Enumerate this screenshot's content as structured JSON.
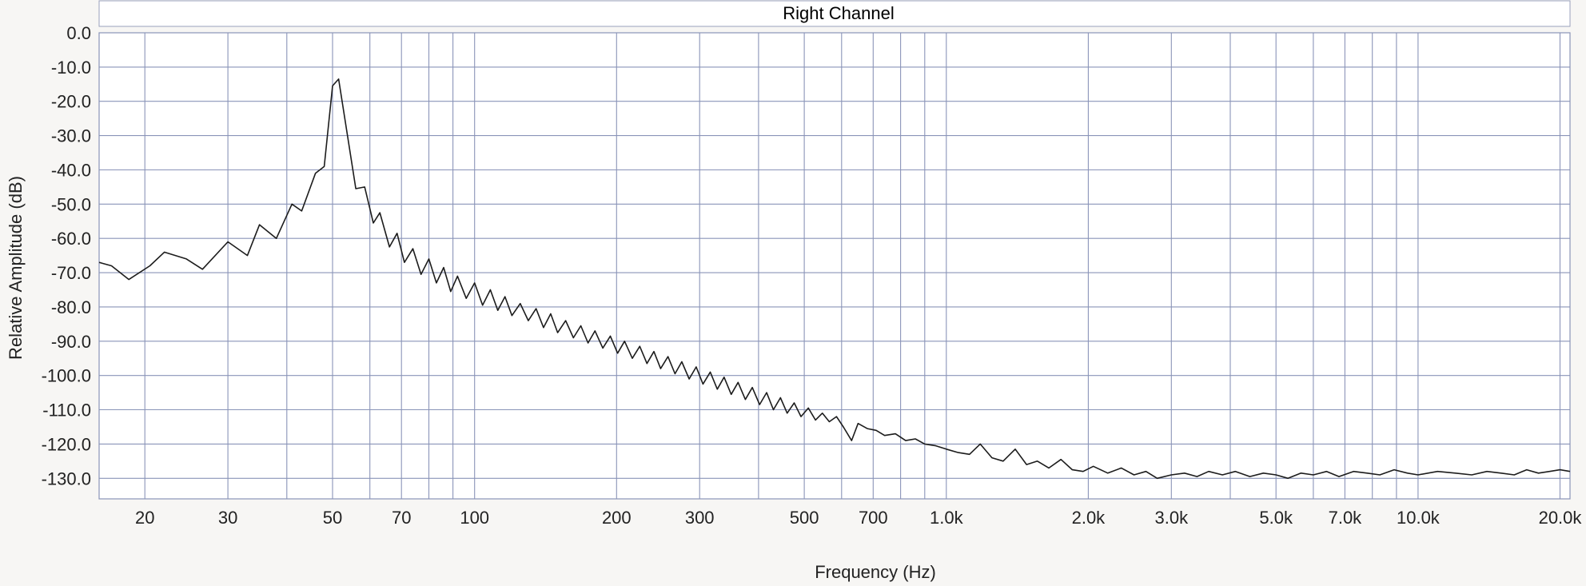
{
  "chart_data": {
    "type": "line",
    "title": "Right Channel",
    "xlabel": "Frequency (Hz)",
    "ylabel": "Relative Amplitude (dB)",
    "x_scale": "log",
    "xlim": [
      16,
      21000
    ],
    "ylim": [
      -136,
      0
    ],
    "grid": true,
    "x_ticks": [
      {
        "value": 20,
        "label": "20"
      },
      {
        "value": 30,
        "label": "30"
      },
      {
        "value": 50,
        "label": "50"
      },
      {
        "value": 70,
        "label": "70"
      },
      {
        "value": 100,
        "label": "100"
      },
      {
        "value": 200,
        "label": "200"
      },
      {
        "value": 300,
        "label": "300"
      },
      {
        "value": 500,
        "label": "500"
      },
      {
        "value": 700,
        "label": "700"
      },
      {
        "value": 1000,
        "label": "1.0k"
      },
      {
        "value": 2000,
        "label": "2.0k"
      },
      {
        "value": 3000,
        "label": "3.0k"
      },
      {
        "value": 5000,
        "label": "5.0k"
      },
      {
        "value": 7000,
        "label": "7.0k"
      },
      {
        "value": 10000,
        "label": "10.0k"
      },
      {
        "value": 20000,
        "label": "20.0k"
      }
    ],
    "x_grid": [
      20,
      30,
      40,
      50,
      60,
      70,
      80,
      90,
      100,
      200,
      300,
      400,
      500,
      600,
      700,
      800,
      900,
      1000,
      2000,
      3000,
      4000,
      5000,
      6000,
      7000,
      8000,
      9000,
      10000,
      20000
    ],
    "y_ticks": [
      {
        "value": 0,
        "label": "0.0"
      },
      {
        "value": -10,
        "label": "-10.0"
      },
      {
        "value": -20,
        "label": "-20.0"
      },
      {
        "value": -30,
        "label": "-30.0"
      },
      {
        "value": -40,
        "label": "-40.0"
      },
      {
        "value": -50,
        "label": "-50.0"
      },
      {
        "value": -60,
        "label": "-60.0"
      },
      {
        "value": -70,
        "label": "-70.0"
      },
      {
        "value": -80,
        "label": "-80.0"
      },
      {
        "value": -90,
        "label": "-90.0"
      },
      {
        "value": -100,
        "label": "-100.0"
      },
      {
        "value": -110,
        "label": "-110.0"
      },
      {
        "value": -120,
        "label": "-120.0"
      },
      {
        "value": -130,
        "label": "-130.0"
      }
    ],
    "series": [
      {
        "color": "#1c1c1c",
        "points": [
          [
            16,
            -67
          ],
          [
            17,
            -68
          ],
          [
            18.5,
            -72
          ],
          [
            20.5,
            -68
          ],
          [
            22,
            -64
          ],
          [
            24.5,
            -66
          ],
          [
            26.5,
            -69
          ],
          [
            30,
            -61
          ],
          [
            33,
            -65
          ],
          [
            35,
            -56
          ],
          [
            38,
            -60
          ],
          [
            41,
            -50
          ],
          [
            43,
            -52
          ],
          [
            46,
            -41
          ],
          [
            48,
            -39
          ],
          [
            50,
            -15.5
          ],
          [
            51.5,
            -13.5
          ],
          [
            56,
            -45.5
          ],
          [
            58.5,
            -45
          ],
          [
            61,
            -55.5
          ],
          [
            63,
            -52.5
          ],
          [
            66,
            -62.5
          ],
          [
            68.5,
            -58.5
          ],
          [
            71,
            -67
          ],
          [
            74,
            -63
          ],
          [
            77,
            -70.5
          ],
          [
            80,
            -66
          ],
          [
            83,
            -73
          ],
          [
            86,
            -68.5
          ],
          [
            89,
            -75.5
          ],
          [
            92,
            -71
          ],
          [
            96,
            -77.5
          ],
          [
            100,
            -73
          ],
          [
            104,
            -79.5
          ],
          [
            108,
            -75
          ],
          [
            112,
            -81
          ],
          [
            116,
            -77
          ],
          [
            120,
            -82.5
          ],
          [
            125,
            -79
          ],
          [
            130,
            -84
          ],
          [
            135,
            -80.5
          ],
          [
            140,
            -86
          ],
          [
            145,
            -82
          ],
          [
            150,
            -87.5
          ],
          [
            156,
            -84
          ],
          [
            162,
            -89
          ],
          [
            168,
            -85.5
          ],
          [
            174,
            -90.5
          ],
          [
            180,
            -87
          ],
          [
            187,
            -92
          ],
          [
            194,
            -88.5
          ],
          [
            201,
            -93.5
          ],
          [
            208,
            -90
          ],
          [
            216,
            -95
          ],
          [
            224,
            -91.5
          ],
          [
            232,
            -96.5
          ],
          [
            240,
            -93
          ],
          [
            248,
            -98
          ],
          [
            257,
            -94.5
          ],
          [
            266,
            -99.5
          ],
          [
            275,
            -96
          ],
          [
            285,
            -101
          ],
          [
            295,
            -97.5
          ],
          [
            305,
            -102.5
          ],
          [
            316,
            -99
          ],
          [
            327,
            -104
          ],
          [
            338,
            -100.5
          ],
          [
            350,
            -105.5
          ],
          [
            362,
            -102
          ],
          [
            375,
            -107
          ],
          [
            388,
            -103.5
          ],
          [
            402,
            -108.5
          ],
          [
            416,
            -105
          ],
          [
            430,
            -110
          ],
          [
            445,
            -106.5
          ],
          [
            460,
            -111
          ],
          [
            476,
            -108
          ],
          [
            492,
            -112
          ],
          [
            510,
            -109.5
          ],
          [
            528,
            -113
          ],
          [
            546,
            -111
          ],
          [
            565,
            -113.5
          ],
          [
            585,
            -112
          ],
          [
            605,
            -115
          ],
          [
            630,
            -119
          ],
          [
            650,
            -114
          ],
          [
            680,
            -115.5
          ],
          [
            710,
            -116
          ],
          [
            740,
            -117.5
          ],
          [
            780,
            -117
          ],
          [
            820,
            -119
          ],
          [
            860,
            -118.5
          ],
          [
            900,
            -120
          ],
          [
            950,
            -120.5
          ],
          [
            1000,
            -121.5
          ],
          [
            1060,
            -122.5
          ],
          [
            1120,
            -123
          ],
          [
            1180,
            -120
          ],
          [
            1250,
            -124
          ],
          [
            1320,
            -125
          ],
          [
            1400,
            -121.5
          ],
          [
            1480,
            -126
          ],
          [
            1560,
            -125
          ],
          [
            1650,
            -127
          ],
          [
            1750,
            -124.5
          ],
          [
            1850,
            -127.5
          ],
          [
            1950,
            -128
          ],
          [
            2050,
            -126.5
          ],
          [
            2200,
            -128.5
          ],
          [
            2350,
            -127
          ],
          [
            2500,
            -129
          ],
          [
            2650,
            -128
          ],
          [
            2800,
            -130
          ],
          [
            3000,
            -129
          ],
          [
            3200,
            -128.5
          ],
          [
            3400,
            -129.5
          ],
          [
            3600,
            -128
          ],
          [
            3850,
            -129
          ],
          [
            4100,
            -128
          ],
          [
            4400,
            -129.5
          ],
          [
            4700,
            -128.5
          ],
          [
            5000,
            -129
          ],
          [
            5300,
            -130
          ],
          [
            5650,
            -128.5
          ],
          [
            6000,
            -129
          ],
          [
            6400,
            -128
          ],
          [
            6800,
            -129.5
          ],
          [
            7300,
            -128
          ],
          [
            7800,
            -128.5
          ],
          [
            8300,
            -129
          ],
          [
            8900,
            -127.5
          ],
          [
            9500,
            -128.5
          ],
          [
            10000,
            -129
          ],
          [
            11000,
            -128
          ],
          [
            12000,
            -128.5
          ],
          [
            13000,
            -129
          ],
          [
            14000,
            -128
          ],
          [
            15000,
            -128.5
          ],
          [
            16000,
            -129
          ],
          [
            17000,
            -127.5
          ],
          [
            18000,
            -128.5
          ],
          [
            19000,
            -128
          ],
          [
            20000,
            -127.5
          ],
          [
            21000,
            -128
          ]
        ]
      }
    ]
  }
}
